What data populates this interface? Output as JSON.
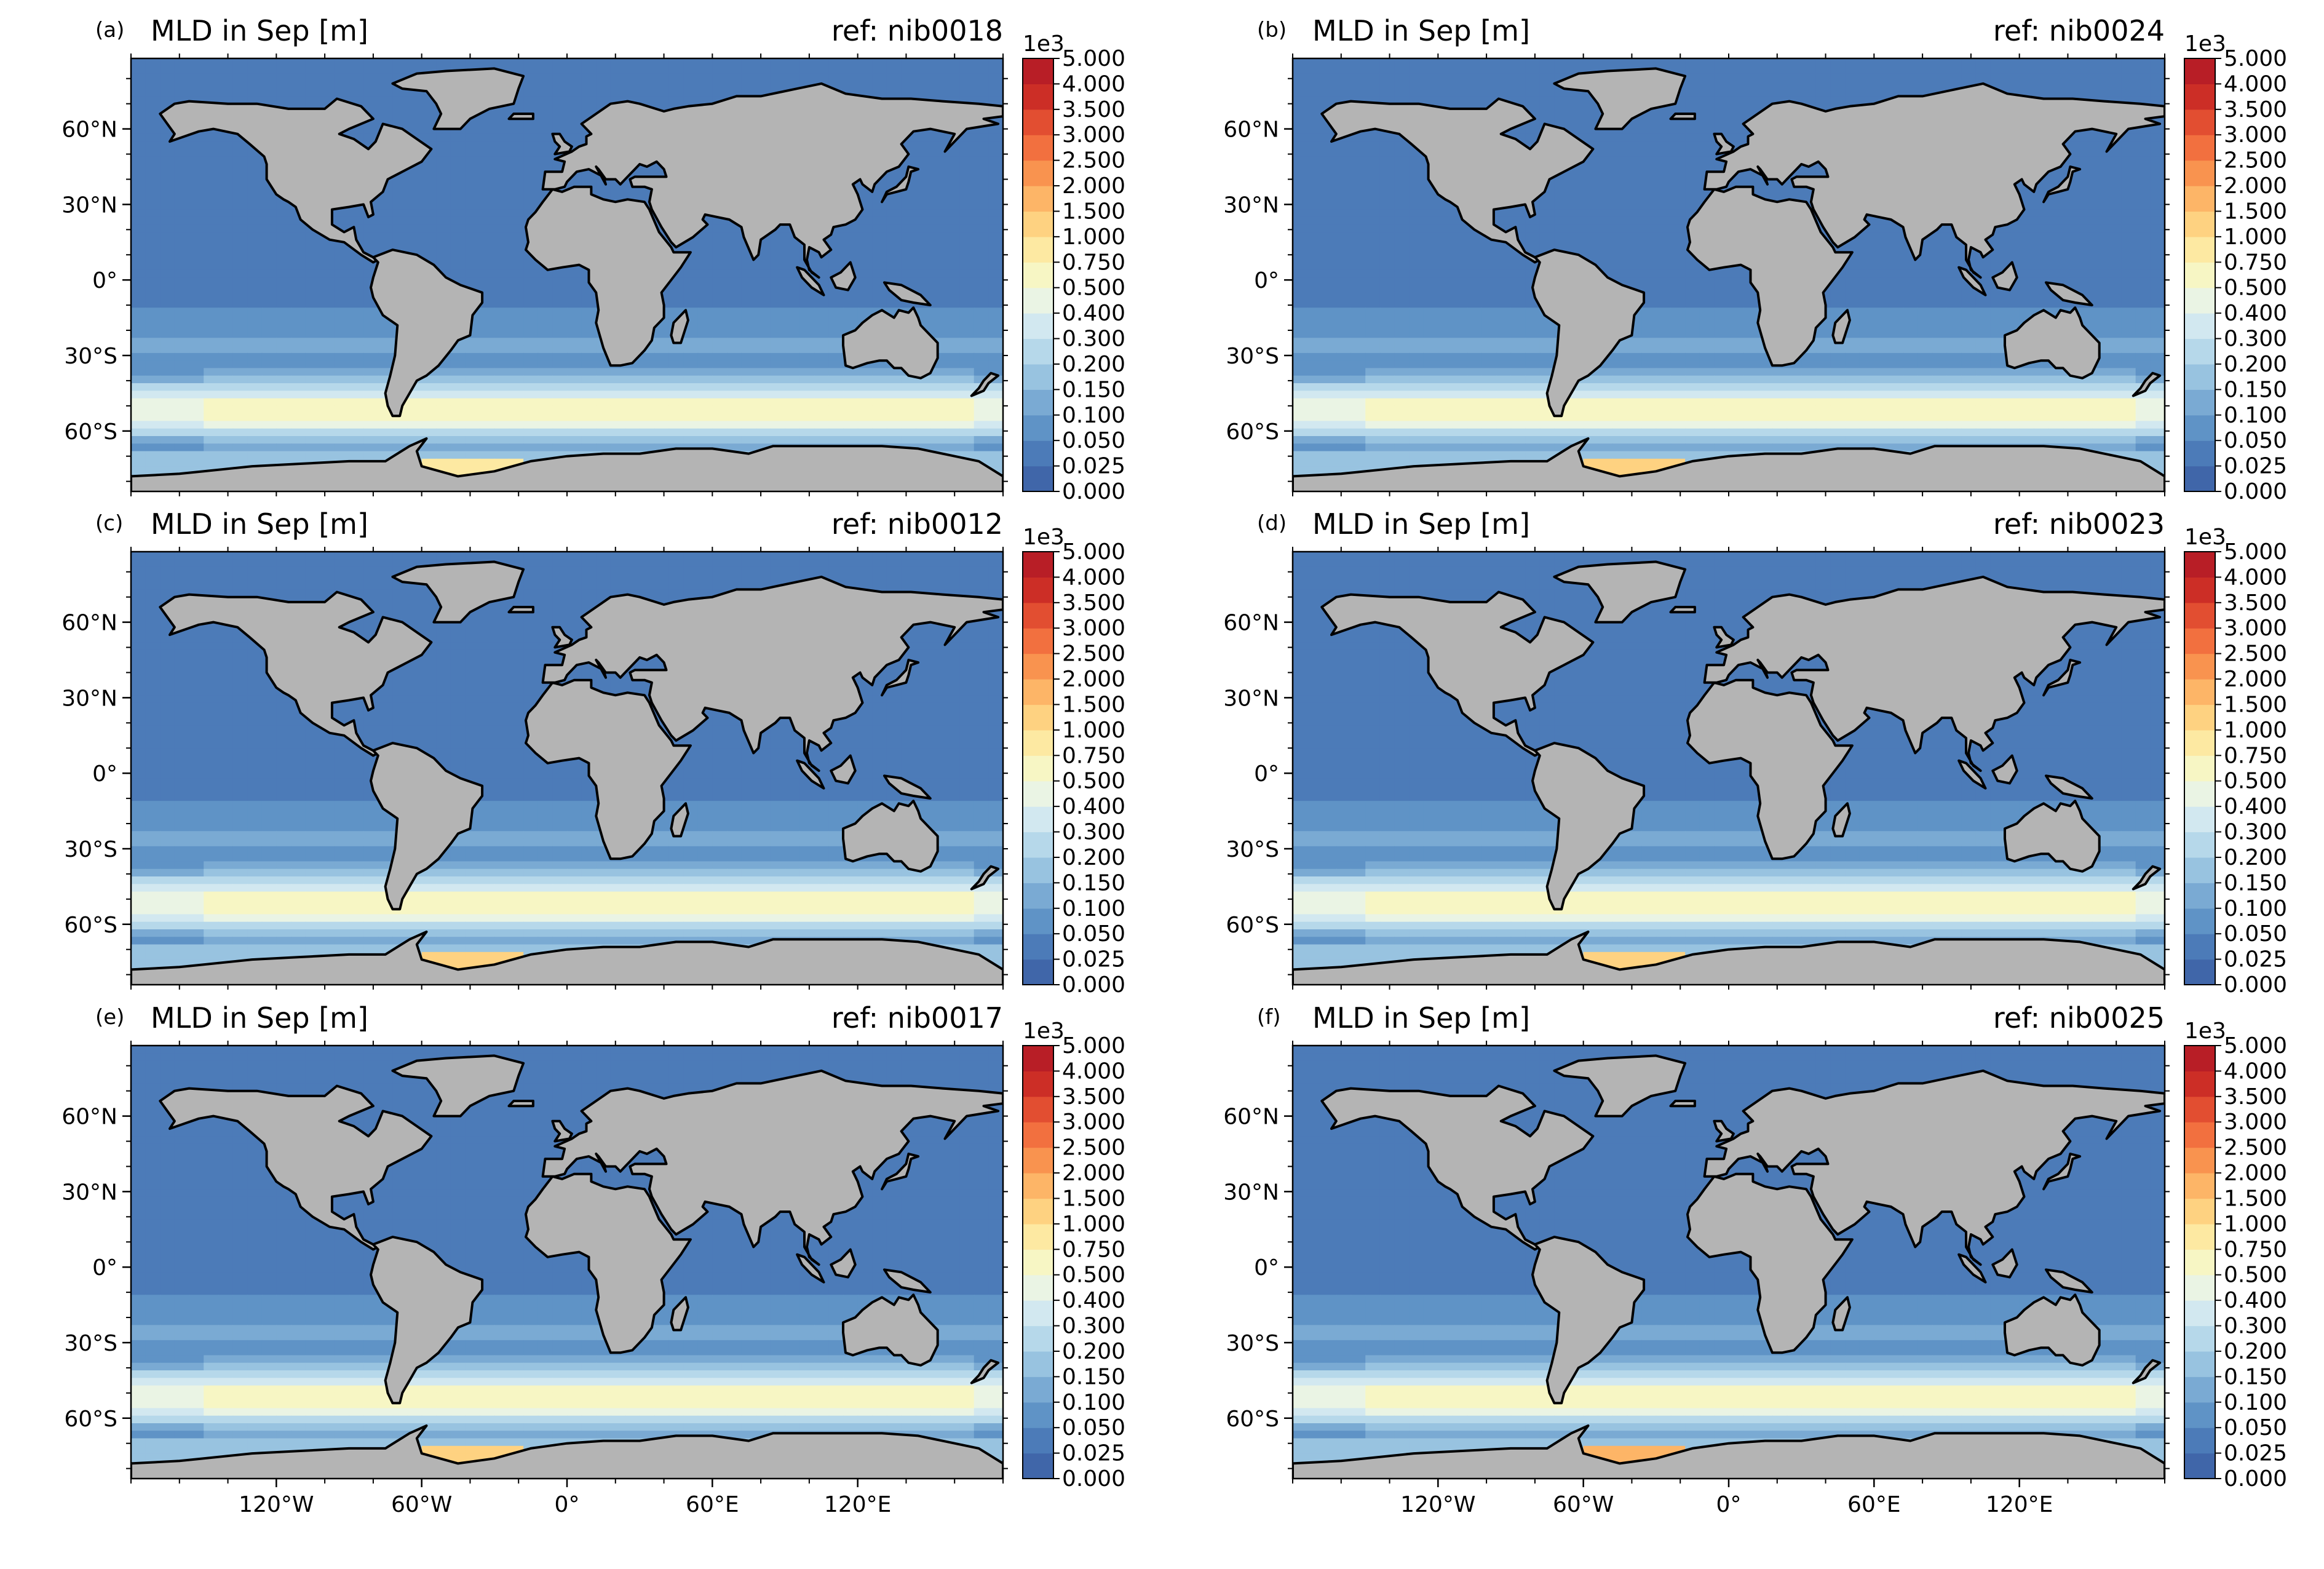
{
  "figure": {
    "panels": [
      {
        "letter": "(a)",
        "title": "MLD in Sep [m]",
        "ref": "ref: nib0018",
        "variant": 0
      },
      {
        "letter": "(b)",
        "title": "MLD in Sep [m]",
        "ref": "ref: nib0024",
        "variant": 1
      },
      {
        "letter": "(c)",
        "title": "MLD in Sep [m]",
        "ref": "ref: nib0012",
        "variant": 2
      },
      {
        "letter": "(d)",
        "title": "MLD in Sep [m]",
        "ref": "ref: nib0023",
        "variant": 3
      },
      {
        "letter": "(e)",
        "title": "MLD in Sep [m]",
        "ref": "ref: nib0017",
        "variant": 4
      },
      {
        "letter": "(f)",
        "title": "MLD in Sep [m]",
        "ref": "ref: nib0025",
        "variant": 5
      }
    ],
    "lat_ticks": [
      "60°N",
      "30°N",
      "0°",
      "30°S",
      "60°S"
    ],
    "lon_ticks": [
      "120°W",
      "60°W",
      "0°",
      "60°E",
      "120°E"
    ],
    "colorbar": {
      "scale_label": "1e3",
      "tick_labels": [
        "5.000",
        "4.000",
        "3.500",
        "3.000",
        "2.500",
        "2.000",
        "1.500",
        "1.000",
        "0.750",
        "0.500",
        "0.400",
        "0.300",
        "0.200",
        "0.150",
        "0.100",
        "0.050",
        "0.025",
        "0.000"
      ],
      "colors": [
        "#4066a9",
        "#4c7bb8",
        "#5f93c6",
        "#7aaad3",
        "#98c3e0",
        "#b6d8ea",
        "#d2e8f0",
        "#eaf4e4",
        "#f7f6c4",
        "#fde9a2",
        "#fed281",
        "#fdb567",
        "#f9934f",
        "#f2703f",
        "#e24e31",
        "#cc2e26",
        "#b81e26"
      ]
    },
    "colors": {
      "land": "#b4b4b4",
      "coastline": "#000000"
    }
  }
}
